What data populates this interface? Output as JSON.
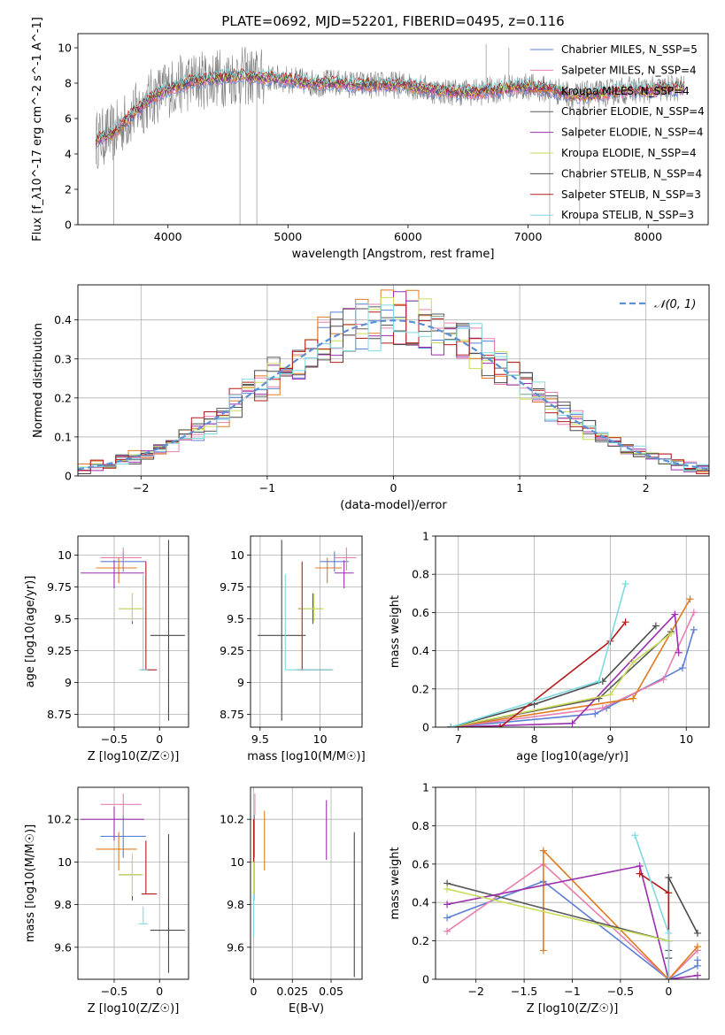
{
  "figure_title": "PLATE=0692, MJD=52201, FIBERID=0495, z=0.116",
  "colors": {
    "chabrier_miles": "#5b7fd6",
    "salpeter_miles": "#e87fb0",
    "kroupa_miles": "#e07b20",
    "chabrier_elodie": "#5a5a5a",
    "salpeter_elodie": "#9b2fae",
    "kroupa_elodie": "#c9dd5a",
    "chabrier_stelib": "#4a4a4a",
    "salpeter_stelib": "#b31b1b",
    "kroupa_stelib": "#7fd9e0",
    "gauss": "#5b8fd6",
    "data": "#808080"
  },
  "chart_data": [
    {
      "id": "spectrum",
      "type": "line",
      "title": "PLATE=0692, MJD=52201, FIBERID=0495, z=0.116",
      "xlabel": "wavelength [Angstrom, rest frame]",
      "ylabel": "Flux [f_λ10^-17 erg cm^-2 s^-1 A^-1]",
      "xlim": [
        3250,
        8500
      ],
      "ylim": [
        0,
        10.8
      ],
      "xticks": [
        4000,
        5000,
        6000,
        7000,
        8000
      ],
      "yticks": [
        0,
        2,
        4,
        6,
        8,
        10
      ],
      "legend_position": "right",
      "series": [
        {
          "name": "Chabrier MILES, N_SSP=5",
          "color_key": "chabrier_miles"
        },
        {
          "name": "Salpeter MILES, N_SSP=4",
          "color_key": "salpeter_miles"
        },
        {
          "name": "Kroupa MILES, N_SSP=4",
          "color_key": "kroupa_miles"
        },
        {
          "name": "Chabrier ELODIE, N_SSP=4",
          "color_key": "chabrier_elodie"
        },
        {
          "name": "Salpeter ELODIE, N_SSP=4",
          "color_key": "salpeter_elodie"
        },
        {
          "name": "Kroupa ELODIE, N_SSP=4",
          "color_key": "kroupa_elodie"
        },
        {
          "name": "Chabrier STELIB, N_SSP=4",
          "color_key": "chabrier_stelib"
        },
        {
          "name": "Salpeter STELIB, N_SSP=3",
          "color_key": "salpeter_stelib"
        },
        {
          "name": "Kroupa STELIB, N_SSP=3",
          "color_key": "kroupa_stelib"
        }
      ],
      "continuum": {
        "x": [
          3400,
          3550,
          3700,
          3850,
          4000,
          4200,
          4400,
          4600,
          4800,
          5000,
          5200,
          5400,
          5600,
          5800,
          6000,
          6200,
          6400,
          6600,
          6800,
          7000,
          7200,
          7400,
          7600,
          7800,
          8000,
          8200
        ],
        "y": [
          4.8,
          5.2,
          6.2,
          7.1,
          7.7,
          8.1,
          8.3,
          8.4,
          8.3,
          8.2,
          8.0,
          8.0,
          7.9,
          7.9,
          7.9,
          7.6,
          7.5,
          7.5,
          7.7,
          7.8,
          7.6,
          7.3,
          7.4,
          7.6,
          7.6,
          7.7
        ]
      }
    },
    {
      "id": "residuals",
      "type": "histogram",
      "xlabel": "(data-model)/error",
      "ylabel": "Normed distribution",
      "xlim": [
        -2.5,
        2.5
      ],
      "ylim": [
        0,
        0.49
      ],
      "xticks": [
        -2,
        -1,
        0,
        1,
        2
      ],
      "yticks": [
        0.0,
        0.1,
        0.2,
        0.3,
        0.4
      ],
      "legend_position": "top-right",
      "reference": {
        "name": "𝒩(0, 1)",
        "mean": 0,
        "sigma": 1,
        "color_key": "gauss"
      }
    },
    {
      "id": "age_vs_Z",
      "type": "errorbar",
      "xlabel": "Z [log10(Z/Z☉)]",
      "ylabel": "age [log10(age/yr)]",
      "xlim": [
        -0.9,
        0.32
      ],
      "ylim": [
        8.65,
        10.15
      ],
      "xticks": [
        -0.5,
        0.0
      ],
      "yticks": [
        8.75,
        9.0,
        9.25,
        9.5,
        9.75,
        10.0
      ],
      "points": [
        {
          "series": "chabrier_miles",
          "x": -0.4,
          "xerr": [
            0.25,
            0.25
          ],
          "y": 9.95,
          "yerr": [
            0.08,
            0.08
          ]
        },
        {
          "series": "salpeter_miles",
          "x": -0.4,
          "xerr": [
            0.25,
            0.2
          ],
          "y": 9.98,
          "yerr": [
            0.1,
            0.08
          ]
        },
        {
          "series": "kroupa_miles",
          "x": -0.45,
          "xerr": [
            0.25,
            0.2
          ],
          "y": 9.9,
          "yerr": [
            0.12,
            0.08
          ]
        },
        {
          "series": "chabrier_elodie",
          "x": -0.3,
          "xerr": [
            0.15,
            0.1
          ],
          "y": 9.58,
          "yerr": [
            0.12,
            0.12
          ]
        },
        {
          "series": "salpeter_elodie",
          "x": -0.5,
          "xerr": [
            0.37,
            0.33
          ],
          "y": 9.86,
          "yerr": [
            0.12,
            0.1
          ]
        },
        {
          "series": "kroupa_elodie",
          "x": -0.3,
          "xerr": [
            0.15,
            0.12
          ],
          "y": 9.58,
          "yerr": [
            0.1,
            0.12
          ]
        },
        {
          "series": "chabrier_stelib",
          "x": 0.1,
          "xerr": [
            0.2,
            0.18
          ],
          "y": 9.37,
          "yerr": [
            0.67,
            0.75
          ]
        },
        {
          "series": "salpeter_stelib",
          "x": -0.15,
          "xerr": [
            0.05,
            0.12
          ],
          "y": 9.1,
          "yerr": [
            0.0,
            0.85
          ]
        },
        {
          "series": "kroupa_stelib",
          "x": -0.18,
          "xerr": [
            0.05,
            0.05
          ],
          "y": 9.1,
          "yerr": [
            0.0,
            0.75
          ]
        }
      ]
    },
    {
      "id": "age_vs_mass",
      "type": "errorbar",
      "xlabel": "mass [log10(M/M☉)]",
      "ylabel": "",
      "xlim": [
        9.42,
        10.35
      ],
      "ylim": [
        8.65,
        10.15
      ],
      "xticks": [
        9.5,
        10.0
      ],
      "yticks": [
        8.75,
        9.0,
        9.25,
        9.5,
        9.75,
        10.0
      ],
      "points": [
        {
          "series": "chabrier_miles",
          "x": 10.12,
          "xerr": [
            0.12,
            0.12
          ],
          "y": 9.95,
          "yerr": [
            0.08,
            0.08
          ]
        },
        {
          "series": "salpeter_miles",
          "x": 10.22,
          "xerr": [
            0.1,
            0.08
          ],
          "y": 9.98,
          "yerr": [
            0.1,
            0.08
          ]
        },
        {
          "series": "kroupa_miles",
          "x": 10.06,
          "xerr": [
            0.1,
            0.12
          ],
          "y": 9.9,
          "yerr": [
            0.12,
            0.08
          ]
        },
        {
          "series": "chabrier_elodie",
          "x": 9.94,
          "xerr": [
            0.12,
            0.08
          ],
          "y": 9.58,
          "yerr": [
            0.12,
            0.12
          ]
        },
        {
          "series": "salpeter_elodie",
          "x": 10.2,
          "xerr": [
            0.08,
            0.08
          ],
          "y": 9.86,
          "yerr": [
            0.12,
            0.1
          ]
        },
        {
          "series": "kroupa_elodie",
          "x": 9.95,
          "xerr": [
            0.12,
            0.08
          ],
          "y": 9.58,
          "yerr": [
            0.1,
            0.12
          ]
        },
        {
          "series": "chabrier_stelib",
          "x": 9.68,
          "xerr": [
            0.2,
            0.2
          ],
          "y": 9.37,
          "yerr": [
            0.67,
            0.75
          ]
        },
        {
          "series": "salpeter_stelib",
          "x": 9.85,
          "xerr": [
            0.05,
            0.25
          ],
          "y": 9.1,
          "yerr": [
            0.0,
            0.85
          ]
        },
        {
          "series": "kroupa_stelib",
          "x": 9.71,
          "xerr": [
            0.0,
            0.4
          ],
          "y": 9.1,
          "yerr": [
            0.0,
            0.75
          ]
        }
      ]
    },
    {
      "id": "weight_vs_age",
      "type": "line",
      "xlabel": "age [log10(age/yr)]",
      "ylabel": "mass weight",
      "xlim": [
        6.7,
        10.3
      ],
      "ylim": [
        0,
        1.0
      ],
      "xticks": [
        7,
        8,
        9,
        10
      ],
      "yticks": [
        0.0,
        0.2,
        0.4,
        0.6,
        0.8,
        1.0
      ],
      "series": [
        {
          "series": "chabrier_miles",
          "x": [
            6.9,
            8.8,
            8.95,
            9.95,
            10.1
          ],
          "y": [
            0.0,
            0.07,
            0.1,
            0.31,
            0.51
          ]
        },
        {
          "series": "salpeter_miles",
          "x": [
            6.9,
            8.9,
            9.7,
            10.1
          ],
          "y": [
            0.0,
            0.1,
            0.25,
            0.6
          ]
        },
        {
          "series": "kroupa_miles",
          "x": [
            6.9,
            9.3,
            10.05
          ],
          "y": [
            0.0,
            0.15,
            0.67
          ]
        },
        {
          "series": "chabrier_elodie",
          "x": [
            6.9,
            8.85,
            9.8
          ],
          "y": [
            0.0,
            0.15,
            0.5
          ]
        },
        {
          "series": "salpeter_elodie",
          "x": [
            6.9,
            8.5,
            9.85,
            9.9
          ],
          "y": [
            0.0,
            0.02,
            0.59,
            0.39
          ]
        },
        {
          "series": "kroupa_elodie",
          "x": [
            6.9,
            9.0,
            9.3,
            9.8
          ],
          "y": [
            0.0,
            0.17,
            0.34,
            0.49
          ]
        },
        {
          "series": "chabrier_stelib",
          "x": [
            6.9,
            8.0,
            8.9,
            9.6
          ],
          "y": [
            0.0,
            0.12,
            0.24,
            0.53
          ]
        },
        {
          "series": "salpeter_stelib",
          "x": [
            6.9,
            7.55,
            9.0,
            9.2
          ],
          "y": [
            0.0,
            0.0,
            0.45,
            0.55
          ]
        },
        {
          "series": "kroupa_stelib",
          "x": [
            6.9,
            8.85,
            9.2
          ],
          "y": [
            0.0,
            0.24,
            0.75
          ]
        }
      ]
    },
    {
      "id": "mass_vs_Z",
      "type": "errorbar",
      "xlabel": "Z [log10(Z/Z☉)]",
      "ylabel": "mass [log10(M/M☉)]",
      "xlim": [
        -0.9,
        0.32
      ],
      "ylim": [
        9.45,
        10.35
      ],
      "xticks": [
        -0.5,
        0.0
      ],
      "yticks": [
        9.6,
        9.8,
        10.0,
        10.2
      ],
      "points": [
        {
          "series": "chabrier_miles",
          "x": -0.4,
          "xerr": [
            0.25,
            0.25
          ],
          "y": 10.12,
          "yerr": [
            0.1,
            0.1
          ]
        },
        {
          "series": "salpeter_miles",
          "x": -0.4,
          "xerr": [
            0.25,
            0.2
          ],
          "y": 10.27,
          "yerr": [
            0.05,
            0.05
          ]
        },
        {
          "series": "kroupa_miles",
          "x": -0.45,
          "xerr": [
            0.25,
            0.2
          ],
          "y": 10.06,
          "yerr": [
            0.1,
            0.08
          ]
        },
        {
          "series": "chabrier_elodie",
          "x": -0.3,
          "xerr": [
            0.15,
            0.1
          ],
          "y": 9.94,
          "yerr": [
            0.12,
            0.08
          ]
        },
        {
          "series": "salpeter_elodie",
          "x": -0.5,
          "xerr": [
            0.37,
            0.33
          ],
          "y": 10.2,
          "yerr": [
            0.1,
            0.06
          ]
        },
        {
          "series": "kroupa_elodie",
          "x": -0.3,
          "xerr": [
            0.15,
            0.12
          ],
          "y": 9.94,
          "yerr": [
            0.1,
            0.1
          ]
        },
        {
          "series": "chabrier_stelib",
          "x": 0.1,
          "xerr": [
            0.2,
            0.18
          ],
          "y": 9.68,
          "yerr": [
            0.2,
            0.45
          ]
        },
        {
          "series": "salpeter_stelib",
          "x": -0.15,
          "xerr": [
            0.05,
            0.12
          ],
          "y": 9.85,
          "yerr": [
            0.0,
            0.25
          ]
        },
        {
          "series": "kroupa_stelib",
          "x": -0.18,
          "xerr": [
            0.05,
            0.05
          ],
          "y": 9.71,
          "yerr": [
            0.0,
            0.08
          ]
        }
      ]
    },
    {
      "id": "mass_vs_ebv",
      "type": "errorbar",
      "xlabel": "E(B-V)",
      "ylabel": "",
      "xlim": [
        -0.002,
        0.07
      ],
      "ylim": [
        9.45,
        10.35
      ],
      "xticks": [
        0.0,
        0.025,
        0.05
      ],
      "yticks": [
        9.6,
        9.8,
        10.0,
        10.2
      ],
      "points": [
        {
          "series": "chabrier_miles",
          "x": 0.0005,
          "xerr": [
            0,
            0
          ],
          "y": 10.12,
          "yerr": [
            0.1,
            0.1
          ]
        },
        {
          "series": "salpeter_miles",
          "x": 0.0008,
          "xerr": [
            0,
            0
          ],
          "y": 10.27,
          "yerr": [
            0.05,
            0.05
          ]
        },
        {
          "series": "kroupa_miles",
          "x": 0.007,
          "xerr": [
            0,
            0
          ],
          "y": 10.06,
          "yerr": [
            0.1,
            0.18
          ]
        },
        {
          "series": "chabrier_elodie",
          "x": 0.0002,
          "xerr": [
            0,
            0
          ],
          "y": 9.94,
          "yerr": [
            0.12,
            0.08
          ]
        },
        {
          "series": "salpeter_elodie",
          "x": 0.047,
          "xerr": [
            0,
            0
          ],
          "y": 10.15,
          "yerr": [
            0.14,
            0.14
          ]
        },
        {
          "series": "kroupa_elodie",
          "x": 0.0,
          "xerr": [
            0,
            0
          ],
          "y": 9.94,
          "yerr": [
            0.1,
            0.1
          ]
        },
        {
          "series": "chabrier_stelib",
          "x": 0.065,
          "xerr": [
            0,
            0
          ],
          "y": 9.8,
          "yerr": [
            0.34,
            0.34
          ]
        },
        {
          "series": "salpeter_stelib",
          "x": 0.0,
          "xerr": [
            0,
            0
          ],
          "y": 10.1,
          "yerr": [
            0.1,
            0.1
          ]
        },
        {
          "series": "kroupa_stelib",
          "x": 0.0,
          "xerr": [
            0,
            0
          ],
          "y": 9.75,
          "yerr": [
            0.1,
            0.1
          ]
        }
      ]
    },
    {
      "id": "weight_vs_Z",
      "type": "line",
      "xlabel": "Z [log10(Z/Z☉)]",
      "ylabel": "mass weight",
      "xlim": [
        -2.42,
        0.42
      ],
      "ylim": [
        0,
        1.0
      ],
      "xticks": [
        -2.0,
        -1.5,
        -1.0,
        -0.5,
        0.0
      ],
      "yticks": [
        0.0,
        0.2,
        0.4,
        0.6,
        0.8,
        1.0
      ],
      "series": [
        {
          "series": "chabrier_miles",
          "x": [
            -2.3,
            -1.3,
            0.0,
            0.3,
            0.3
          ],
          "y": [
            0.32,
            0.51,
            0.0,
            0.07,
            0.1
          ]
        },
        {
          "series": "salpeter_miles",
          "x": [
            -2.3,
            -1.3,
            0.0,
            0.3
          ],
          "y": [
            0.25,
            0.6,
            0.0,
            0.15
          ]
        },
        {
          "series": "kroupa_miles",
          "x": [
            -1.3,
            -1.3,
            0.0,
            0.3
          ],
          "y": [
            0.15,
            0.67,
            0.0,
            0.17
          ]
        },
        {
          "series": "chabrier_elodie",
          "x": [
            -2.3,
            0.0,
            0.0
          ],
          "y": [
            0.5,
            0.2,
            0.15
          ]
        },
        {
          "series": "salpeter_elodie",
          "x": [
            -2.3,
            -0.3,
            0.0,
            0.3
          ],
          "y": [
            0.39,
            0.59,
            0.0,
            0.02
          ]
        },
        {
          "series": "kroupa_elodie",
          "x": [
            -2.3,
            0.0
          ],
          "y": [
            0.47,
            0.2
          ]
        },
        {
          "series": "chabrier_stelib",
          "x": [
            0.0,
            0.0,
            0.3
          ],
          "y": [
            0.11,
            0.53,
            0.24
          ]
        },
        {
          "series": "salpeter_stelib",
          "x": [
            -0.3,
            0.0,
            0.0
          ],
          "y": [
            0.55,
            0.45,
            0.0
          ]
        },
        {
          "series": "kroupa_stelib",
          "x": [
            -0.35,
            0.0,
            0.0
          ],
          "y": [
            0.75,
            0.24,
            0.0
          ]
        }
      ]
    }
  ]
}
